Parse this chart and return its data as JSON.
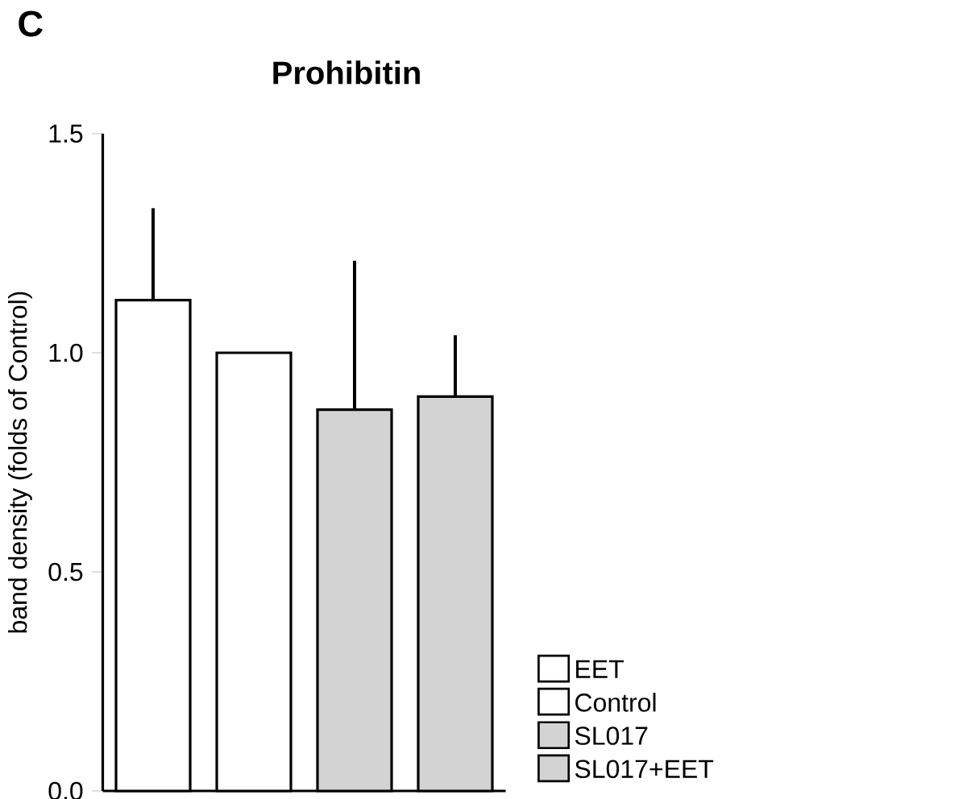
{
  "chart_data": {
    "type": "bar",
    "title": "Prohibitin",
    "ylabel": "band density (folds of Control)",
    "annotations": [
      "C"
    ],
    "categories": [
      null,
      null,
      null,
      null
    ],
    "series": [
      {
        "name": "EET",
        "color": "#ffffff",
        "values": [
          1.12,
          null,
          null,
          null
        ],
        "errors": [
          [
            1.12,
            1.33
          ],
          null,
          null,
          null
        ]
      },
      {
        "name": "Control",
        "color": "#ffffff",
        "values": [
          null,
          1.0,
          null,
          null
        ],
        "errors": [
          null,
          null,
          null,
          null
        ]
      },
      {
        "name": "SL017",
        "color": "#d3d3d3",
        "values": [
          null,
          null,
          0.87,
          null
        ],
        "errors": [
          null,
          null,
          [
            0.87,
            1.21
          ],
          null
        ]
      },
      {
        "name": "SL017+EET",
        "color": "#d3d3d3",
        "values": [
          null,
          null,
          null,
          0.9
        ],
        "errors": [
          null,
          null,
          null,
          [
            0.9,
            1.04
          ]
        ]
      }
    ],
    "ylim": [
      0,
      1.5
    ],
    "yticks": [
      {
        "value": 0,
        "label": "0.0"
      },
      {
        "value": 0.5,
        "label": "0.5"
      },
      {
        "value": 1.0,
        "label": "1.0"
      },
      {
        "value": 1.5,
        "label": "1.5"
      }
    ],
    "tick_labels": "y",
    "grid": false,
    "legend": "bottom right"
  }
}
